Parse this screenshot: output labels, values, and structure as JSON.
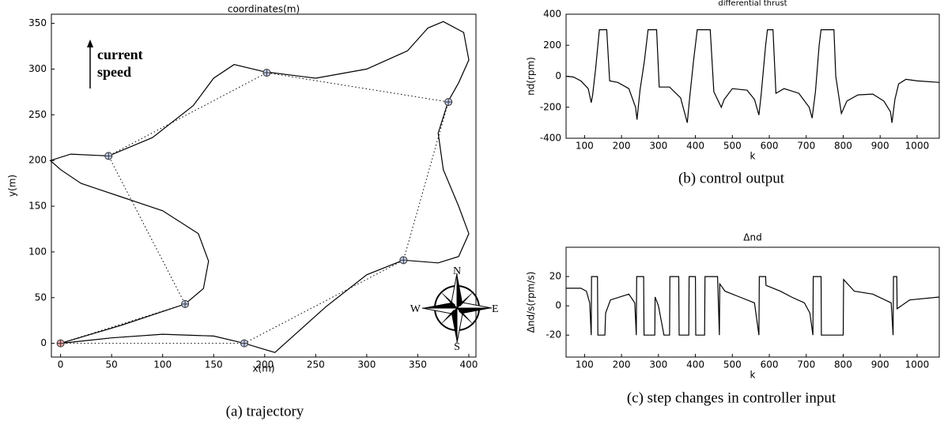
{
  "chart_data": [
    {
      "type": "line",
      "title": "coordinates(m)",
      "xlabel": "x(m)",
      "ylabel": "y(m)",
      "caption": "(a) trajectory",
      "xlim": [
        -9,
        407
      ],
      "ylim": [
        -15,
        360
      ],
      "xticks": [
        0,
        50,
        100,
        150,
        200,
        250,
        300,
        350,
        400
      ],
      "yticks": [
        0,
        50,
        100,
        150,
        200,
        250,
        300,
        350
      ],
      "annotations": [
        "current",
        "speed"
      ],
      "compass": [
        "N",
        "E",
        "S",
        "W"
      ],
      "series": [
        {
          "color": "#000000",
          "linestyle": "solid",
          "x": [
            0,
            60,
            122,
            140,
            145,
            135,
            100,
            60,
            20,
            0,
            -10,
            10,
            47,
            90,
            130,
            150,
            170,
            200,
            250,
            300,
            340,
            360,
            375,
            395,
            400,
            390,
            380,
            370,
            375,
            390,
            400,
            390,
            370,
            336,
            300,
            260,
            230,
            210,
            195,
            180,
            150,
            100,
            50,
            0
          ],
          "values": [
            0,
            20,
            43,
            60,
            90,
            120,
            145,
            160,
            175,
            190,
            200,
            207,
            205,
            225,
            260,
            290,
            305,
            297,
            290,
            300,
            320,
            345,
            352,
            340,
            310,
            285,
            265,
            230,
            190,
            150,
            120,
            95,
            88,
            91,
            75,
            40,
            10,
            -10,
            -5,
            0,
            8,
            10,
            6,
            0
          ]
        },
        {
          "color": "#000000",
          "linestyle": "dotted",
          "closed": true,
          "marker": "circle",
          "marker_fill": [
            "#f2a6a6",
            "#c4cff0",
            "#c4cff0",
            "#c4cff0",
            "#c4cff0",
            "#c4cff0",
            "#c4cff0"
          ],
          "x": [
            0,
            122,
            47,
            202,
            380,
            336,
            180
          ],
          "values": [
            0,
            43,
            205,
            296,
            264,
            91,
            0
          ]
        }
      ]
    },
    {
      "type": "line",
      "title": "differential thrust",
      "xlabel": "k",
      "ylabel": "nd(rpm)",
      "caption": "(b) control output",
      "xlim": [
        50,
        1060
      ],
      "ylim": [
        -400,
        400
      ],
      "xticks": [
        100,
        200,
        300,
        400,
        500,
        600,
        700,
        800,
        900,
        1000
      ],
      "yticks": [
        -400,
        -200,
        0,
        200,
        400
      ],
      "series": [
        {
          "color": "#000000",
          "linestyle": "solid",
          "x": [
            50,
            70,
            90,
            110,
            118,
            122,
            130,
            140,
            160,
            168,
            190,
            220,
            238,
            242,
            250,
            262,
            272,
            295,
            302,
            330,
            360,
            378,
            384,
            395,
            405,
            440,
            450,
            470,
            478,
            500,
            540,
            560,
            572,
            578,
            590,
            595,
            610,
            618,
            640,
            680,
            708,
            716,
            725,
            735,
            740,
            775,
            780,
            795,
            810,
            840,
            880,
            910,
            928,
            932,
            940,
            950,
            970,
            1000,
            1060
          ],
          "values": [
            0,
            -5,
            -30,
            -80,
            -170,
            -120,
            50,
            300,
            300,
            -30,
            -40,
            -80,
            -200,
            -280,
            -90,
            100,
            300,
            300,
            -70,
            -70,
            -140,
            -300,
            -150,
            100,
            300,
            300,
            -100,
            -200,
            -150,
            -80,
            -90,
            -150,
            -250,
            -120,
            200,
            300,
            300,
            -110,
            -80,
            -110,
            -200,
            -270,
            -100,
            200,
            300,
            300,
            0,
            -240,
            -160,
            -120,
            -115,
            -160,
            -230,
            -300,
            -150,
            -50,
            -20,
            -30,
            -40
          ]
        }
      ]
    },
    {
      "type": "line",
      "title": "Δnd",
      "xlabel": "k",
      "ylabel": "Δnd/s(rpm/s)",
      "caption": "(c) step changes in controller input",
      "xlim": [
        50,
        1060
      ],
      "ylim": [
        -35,
        40
      ],
      "xticks": [
        100,
        200,
        300,
        400,
        500,
        600,
        700,
        800,
        900,
        1000
      ],
      "yticks": [
        -20,
        0,
        20
      ],
      "series": [
        {
          "color": "#000000",
          "linestyle": "solid",
          "x": [
            50,
            90,
            105,
            114,
            118,
            119,
            135,
            136,
            155,
            157,
            170,
            220,
            236,
            240,
            241,
            260,
            261,
            290,
            291,
            300,
            315,
            316,
            330,
            331,
            355,
            356,
            375,
            382,
            383,
            400,
            401,
            425,
            426,
            445,
            460,
            465,
            466,
            480,
            520,
            560,
            572,
            573,
            590,
            591,
            630,
            660,
            695,
            710,
            718,
            719,
            740,
            741,
            760,
            790,
            800,
            801,
            830,
            880,
            930,
            935,
            936,
            945,
            946,
            980,
            1060
          ],
          "values": [
            12,
            12,
            10,
            2,
            -20,
            20,
            20,
            -20,
            -20,
            -5,
            4,
            8,
            2,
            -20,
            20,
            20,
            -20,
            -20,
            6,
            0,
            -20,
            -20,
            -20,
            20,
            20,
            -20,
            -20,
            -20,
            20,
            20,
            -20,
            -20,
            20,
            20,
            20,
            -20,
            15,
            10,
            6,
            2,
            -20,
            20,
            20,
            14,
            10,
            6,
            2,
            -5,
            -20,
            20,
            20,
            -20,
            -20,
            -20,
            -20,
            18,
            10,
            8,
            2,
            -20,
            20,
            20,
            -2,
            4,
            6
          ]
        }
      ]
    }
  ]
}
